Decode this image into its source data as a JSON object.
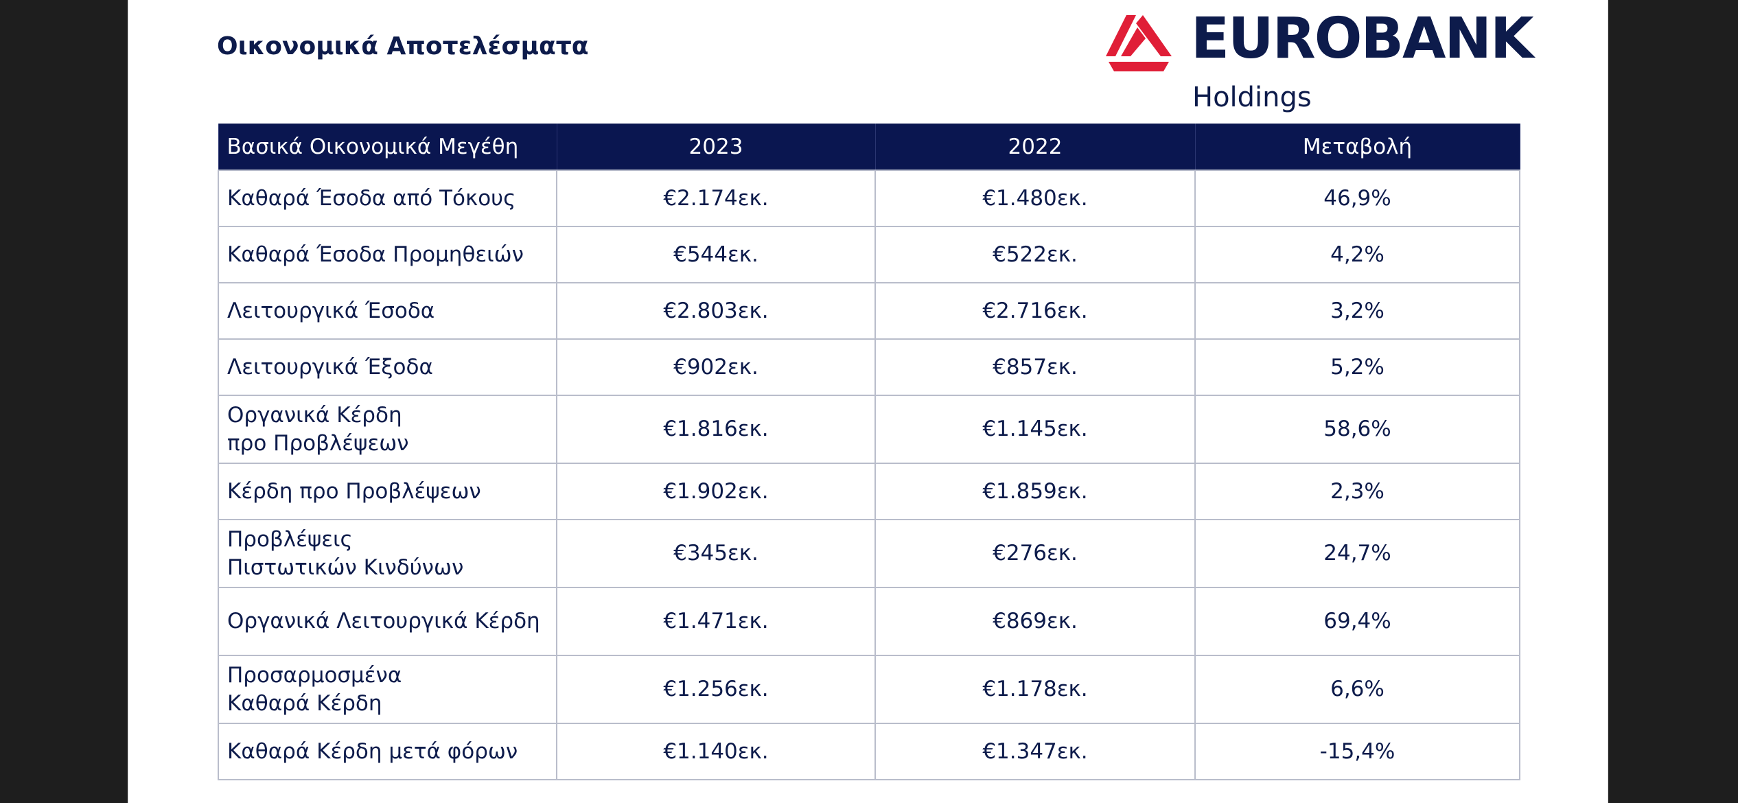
{
  "title": "Οικονομικά Αποτελέσματα",
  "logo": {
    "name": "EUROBANK",
    "sub": "Holdings",
    "brand_navy": "#0d1b4b",
    "brand_red": "#e01e37"
  },
  "table": {
    "headers": [
      "Βασικά Οικονομικά Μεγέθη",
      "2023",
      "2022",
      "Μεταβολή"
    ],
    "rows": [
      {
        "label": "Καθαρά Έσοδα από Τόκους",
        "v2023": "€2.174εκ.",
        "v2022": "€1.480εκ.",
        "change": "46,9%"
      },
      {
        "label": "Καθαρά Έσοδα Προμηθειών",
        "v2023": "€544εκ.",
        "v2022": "€522εκ.",
        "change": "4,2%"
      },
      {
        "label": "Λειτουργικά Έσοδα",
        "v2023": "€2.803εκ.",
        "v2022": "€2.716εκ.",
        "change": "3,2%"
      },
      {
        "label": "Λειτουργικά Έξοδα",
        "v2023": "€902εκ.",
        "v2022": "€857εκ.",
        "change": "5,2%"
      },
      {
        "label": "Οργανικά Κέρδη\nπρο Προβλέψεων",
        "v2023": "€1.816εκ.",
        "v2022": "€1.145εκ.",
        "change": "58,6%"
      },
      {
        "label": "Κέρδη προ Προβλέψεων",
        "v2023": "€1.902εκ.",
        "v2022": "€1.859εκ.",
        "change": "2,3%"
      },
      {
        "label": "Προβλέψεις\nΠιστωτικών Κινδύνων",
        "v2023": "€345εκ.",
        "v2022": "€276εκ.",
        "change": "24,7%"
      },
      {
        "label": "Οργανικά Λειτουργικά Κέρδη",
        "v2023": "€1.471εκ.",
        "v2022": "€869εκ.",
        "change": "69,4%"
      },
      {
        "label": "Προσαρμοσμένα\nΚαθαρά Κέρδη",
        "v2023": "€1.256εκ.",
        "v2022": "€1.178εκ.",
        "change": "6,6%"
      },
      {
        "label": "Καθαρά Κέρδη μετά φόρων",
        "v2023": "€1.140εκ.",
        "v2022": "€1.347εκ.",
        "change": "-15,4%"
      }
    ]
  }
}
